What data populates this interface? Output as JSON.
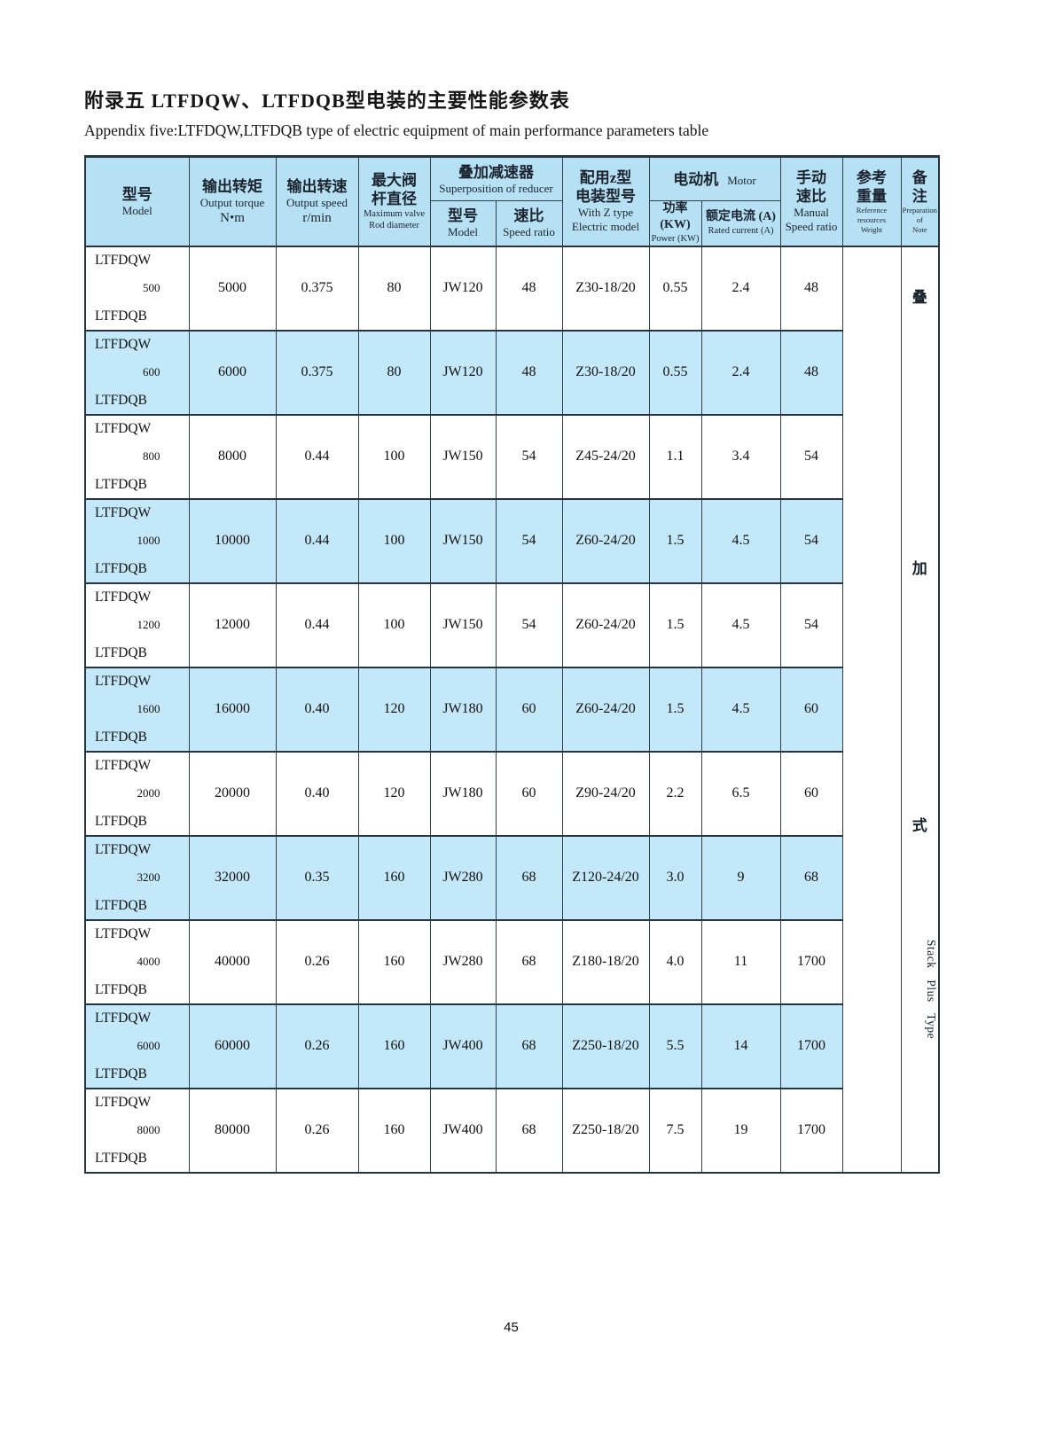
{
  "page": {
    "title_zh": "附录五 LTFDQW、LTFDQB型电装的主要性能参数表",
    "subtitle_en": "Appendix five:LTFDQW,LTFDQB type of electric equipment of main performance parameters table",
    "page_number": "45"
  },
  "colors": {
    "header_bg": "#b6e0f3",
    "row_alt_bg": "#c3e8fa",
    "border_dark": "#27333e",
    "text": "#111111"
  },
  "table": {
    "headers": {
      "model": {
        "zh": "型号",
        "en": "Model"
      },
      "output_torque": {
        "zh": "输出转矩",
        "en": "Output torque",
        "unit": "N•m"
      },
      "output_speed": {
        "zh": "输出转速",
        "en": "Output speed",
        "unit": "r/min"
      },
      "max_valve": {
        "zh1": "最大阀",
        "zh2": "杆直径",
        "en1": "Maximum valve",
        "en2": "Rod diameter"
      },
      "reducer_group": {
        "zh": "叠加减速器",
        "en": "Superposition of reducer"
      },
      "reducer_model": {
        "zh": "型号",
        "en": "Model"
      },
      "reducer_ratio": {
        "zh": "速比",
        "en": "Speed ratio"
      },
      "z_type": {
        "zh1": "配用z型",
        "zh2": "电装型号",
        "en1": "With Z type",
        "en2": "Electric model"
      },
      "motor_group": {
        "zh": "电动机",
        "en": "Motor"
      },
      "power": {
        "zh": "功率(KW)",
        "en": "Power (KW)"
      },
      "current": {
        "zh": "额定电流 (A)",
        "en": "Rated current (A)"
      },
      "manual_ratio": {
        "zh1": "手动",
        "zh2": "速比",
        "en1": "Manual",
        "en2": "Speed ratio"
      },
      "weight": {
        "zh1": "参考",
        "zh2": "重量",
        "en1": "Reference resources",
        "en2": "Weight"
      },
      "note": {
        "zh1": "备",
        "zh2": "注",
        "en1": "Preparation of",
        "en2": "Note"
      }
    },
    "rows": [
      {
        "prefix": "LTFDQW",
        "size": "500",
        "suffix": "LTFDQB",
        "torque": "5000",
        "speed": "0.375",
        "rod": "80",
        "jw_model": "JW120",
        "jw_ratio": "48",
        "z_model": "Z30-18/20",
        "power": "0.55",
        "current": "2.4",
        "manual": "48"
      },
      {
        "prefix": "LTFDQW",
        "size": "600",
        "suffix": "LTFDQB",
        "torque": "6000",
        "speed": "0.375",
        "rod": "80",
        "jw_model": "JW120",
        "jw_ratio": "48",
        "z_model": "Z30-18/20",
        "power": "0.55",
        "current": "2.4",
        "manual": "48"
      },
      {
        "prefix": "LTFDQW",
        "size": "800",
        "suffix": "LTFDQB",
        "torque": "8000",
        "speed": "0.44",
        "rod": "100",
        "jw_model": "JW150",
        "jw_ratio": "54",
        "z_model": "Z45-24/20",
        "power": "1.1",
        "current": "3.4",
        "manual": "54"
      },
      {
        "prefix": "LTFDQW",
        "size": "1000",
        "suffix": "LTFDQB",
        "torque": "10000",
        "speed": "0.44",
        "rod": "100",
        "jw_model": "JW150",
        "jw_ratio": "54",
        "z_model": "Z60-24/20",
        "power": "1.5",
        "current": "4.5",
        "manual": "54"
      },
      {
        "prefix": "LTFDQW",
        "size": "1200",
        "suffix": "LTFDQB",
        "torque": "12000",
        "speed": "0.44",
        "rod": "100",
        "jw_model": "JW150",
        "jw_ratio": "54",
        "z_model": "Z60-24/20",
        "power": "1.5",
        "current": "4.5",
        "manual": "54"
      },
      {
        "prefix": "LTFDQW",
        "size": "1600",
        "suffix": "LTFDQB",
        "torque": "16000",
        "speed": "0.40",
        "rod": "120",
        "jw_model": "JW180",
        "jw_ratio": "60",
        "z_model": "Z60-24/20",
        "power": "1.5",
        "current": "4.5",
        "manual": "60"
      },
      {
        "prefix": "LTFDQW",
        "size": "2000",
        "suffix": "LTFDQB",
        "torque": "20000",
        "speed": "0.40",
        "rod": "120",
        "jw_model": "JW180",
        "jw_ratio": "60",
        "z_model": "Z90-24/20",
        "power": "2.2",
        "current": "6.5",
        "manual": "60"
      },
      {
        "prefix": "LTFDQW",
        "size": "3200",
        "suffix": "LTFDQB",
        "torque": "32000",
        "speed": "0.35",
        "rod": "160",
        "jw_model": "JW280",
        "jw_ratio": "68",
        "z_model": "Z120-24/20",
        "power": "3.0",
        "current": "9",
        "manual": "68"
      },
      {
        "prefix": "LTFDQW",
        "size": "4000",
        "suffix": "LTFDQB",
        "torque": "40000",
        "speed": "0.26",
        "rod": "160",
        "jw_model": "JW280",
        "jw_ratio": "68",
        "z_model": "Z180-18/20",
        "power": "4.0",
        "current": "11",
        "manual": "1700"
      },
      {
        "prefix": "LTFDQW",
        "size": "6000",
        "suffix": "LTFDQB",
        "torque": "60000",
        "speed": "0.26",
        "rod": "160",
        "jw_model": "JW400",
        "jw_ratio": "68",
        "z_model": "Z250-18/20",
        "power": "5.5",
        "current": "14",
        "manual": "1700"
      },
      {
        "prefix": "LTFDQW",
        "size": "8000",
        "suffix": "LTFDQB",
        "torque": "80000",
        "speed": "0.26",
        "rod": "160",
        "jw_model": "JW400",
        "jw_ratio": "68",
        "z_model": "Z250-18/20",
        "power": "7.5",
        "current": "19",
        "manual": "1700"
      }
    ],
    "note_column": {
      "c1": "叠",
      "c2": "加",
      "c3": "式",
      "en": "Stack Plus Type"
    },
    "weight_value": ""
  }
}
